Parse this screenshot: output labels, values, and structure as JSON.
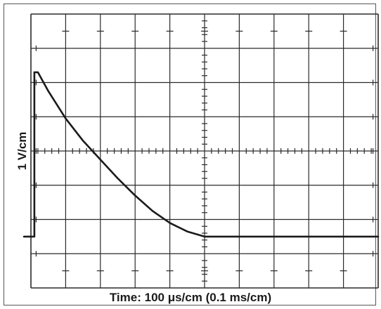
{
  "chart_data": {
    "type": "line",
    "title": "",
    "ylabel": "1 V/cm",
    "xlabel_text": "Time: 100 μs/cm (0.1 ms/cm)",
    "x_unit": "cm (divisions)",
    "y_unit": "cm (divisions)",
    "xlim": [
      0,
      10
    ],
    "ylim": [
      -4,
      4
    ],
    "grid": true,
    "divisions": {
      "x": 10,
      "y": 8
    },
    "series": [
      {
        "values_note": "",
        "x": [
          -0.2,
          0.1,
          0.1,
          0.2,
          0.5,
          1.0,
          1.5,
          2.0,
          2.5,
          3.0,
          3.5,
          4.0,
          4.5,
          5.0,
          6.0,
          7.0,
          8.0,
          9.0,
          10.0
        ],
        "y": [
          -2.5,
          -2.5,
          2.3,
          2.3,
          1.75,
          0.95,
          0.3,
          -0.25,
          -0.8,
          -1.3,
          -1.75,
          -2.1,
          -2.35,
          -2.5,
          -2.5,
          -2.5,
          -2.5,
          -2.5,
          -2.5
        ]
      }
    ],
    "colors": {
      "trace": "#1a1a1a",
      "grid": "#2a2a2a",
      "background": "#ffffff"
    }
  }
}
